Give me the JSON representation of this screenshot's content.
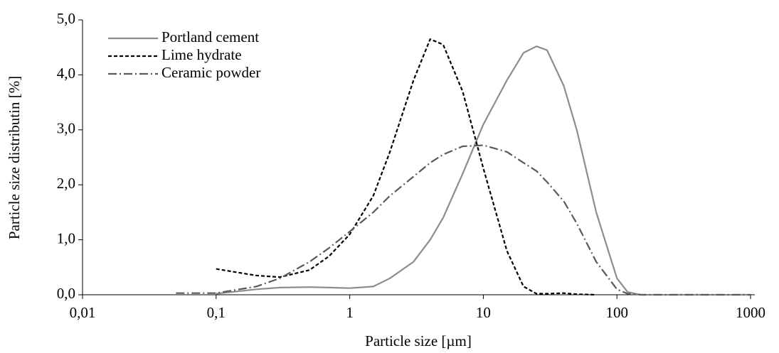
{
  "chart_data": {
    "type": "line",
    "xlabel": "Particle size [µm]",
    "ylabel": "Particle size distributin [%]",
    "xscale": "log",
    "x": [
      0.05,
      0.1,
      0.2,
      0.3,
      0.5,
      0.7,
      1,
      1.5,
      2,
      3,
      4,
      5,
      7,
      10,
      15,
      20,
      25,
      30,
      40,
      50,
      70,
      100,
      120,
      150,
      200,
      500,
      1000
    ],
    "series": [
      {
        "name": "Portland cement",
        "color": "#8c8c8c",
        "style": "solid",
        "values": [
          null,
          0.02,
          0.1,
          0.13,
          0.14,
          0.13,
          0.12,
          0.15,
          0.3,
          0.6,
          1.0,
          1.4,
          2.2,
          3.1,
          3.9,
          4.4,
          4.52,
          4.45,
          3.8,
          3.0,
          1.5,
          0.3,
          0.05,
          0.0,
          0.0,
          0.0,
          0.0
        ]
      },
      {
        "name": "Lime hydrate",
        "color": "#000000",
        "style": "dashed",
        "values": [
          null,
          0.47,
          0.35,
          0.32,
          0.45,
          0.7,
          1.1,
          1.8,
          2.6,
          3.9,
          4.65,
          4.55,
          3.7,
          2.3,
          0.8,
          0.15,
          0.02,
          0.02,
          0.03,
          0.01,
          0.0,
          null,
          null,
          null,
          null,
          null,
          null
        ]
      },
      {
        "name": "Ceramic powder",
        "color": "#595959",
        "style": "dashdot",
        "values": [
          0.03,
          0.03,
          0.15,
          0.3,
          0.6,
          0.85,
          1.15,
          1.5,
          1.8,
          2.15,
          2.4,
          2.55,
          2.7,
          2.72,
          2.6,
          2.4,
          2.25,
          2.05,
          1.7,
          1.3,
          0.6,
          0.1,
          0.02,
          0.0,
          0.0,
          0.0,
          0.0
        ]
      }
    ],
    "xlim": [
      0.01,
      1000
    ],
    "xticks": [
      {
        "value": 0.01,
        "label": "0,01"
      },
      {
        "value": 0.1,
        "label": "0,1"
      },
      1,
      10,
      100,
      1000
    ],
    "ylim": [
      0,
      5
    ],
    "yticks": [
      {
        "value": 0,
        "label": "0,0"
      },
      {
        "value": 1,
        "label": "1,0"
      },
      {
        "value": 2,
        "label": "2,0"
      },
      {
        "value": 3,
        "label": "3,0"
      },
      {
        "value": 4,
        "label": "4,0"
      },
      {
        "value": 5,
        "label": "5,0"
      }
    ],
    "legend": "upper left"
  }
}
